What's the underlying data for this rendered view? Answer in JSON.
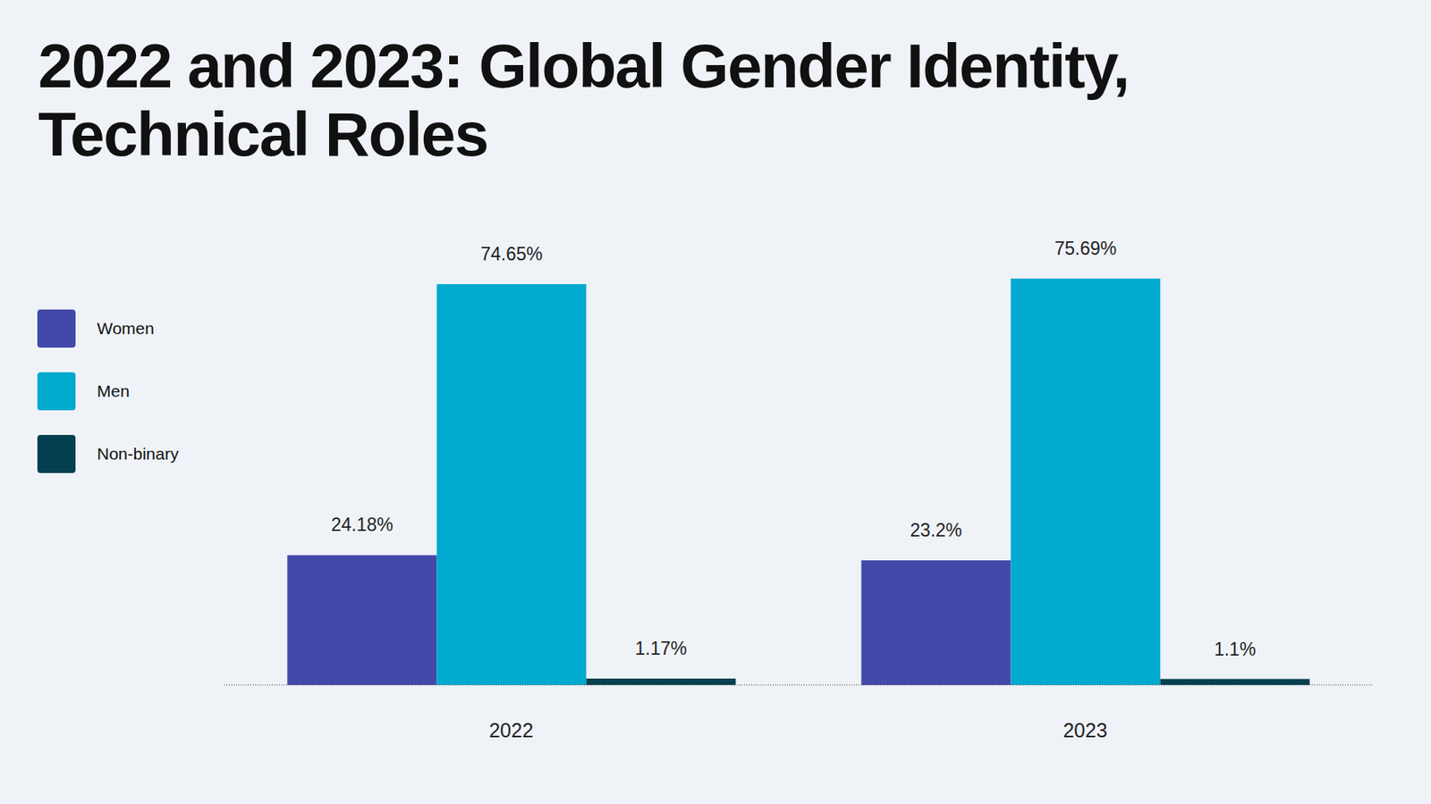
{
  "chart_data": {
    "type": "bar",
    "title": "2022 and 2023: Global Gender Identity, Technical Roles",
    "categories": [
      "2022",
      "2023"
    ],
    "series": [
      {
        "name": "Women",
        "color": "#4349a8",
        "values": [
          24.18,
          23.2
        ],
        "value_labels": [
          "24.18%",
          "23.2%"
        ]
      },
      {
        "name": "Men",
        "color": "#00aacf",
        "values": [
          74.65,
          75.69
        ],
        "value_labels": [
          "74.65%",
          "75.69%"
        ]
      },
      {
        "name": "Non-binary",
        "color": "#03404f",
        "values": [
          1.17,
          1.1
        ],
        "value_labels": [
          "1.17%",
          "1.1%"
        ]
      }
    ],
    "data_labels": true,
    "tick_labels": "x",
    "legend": "left"
  }
}
